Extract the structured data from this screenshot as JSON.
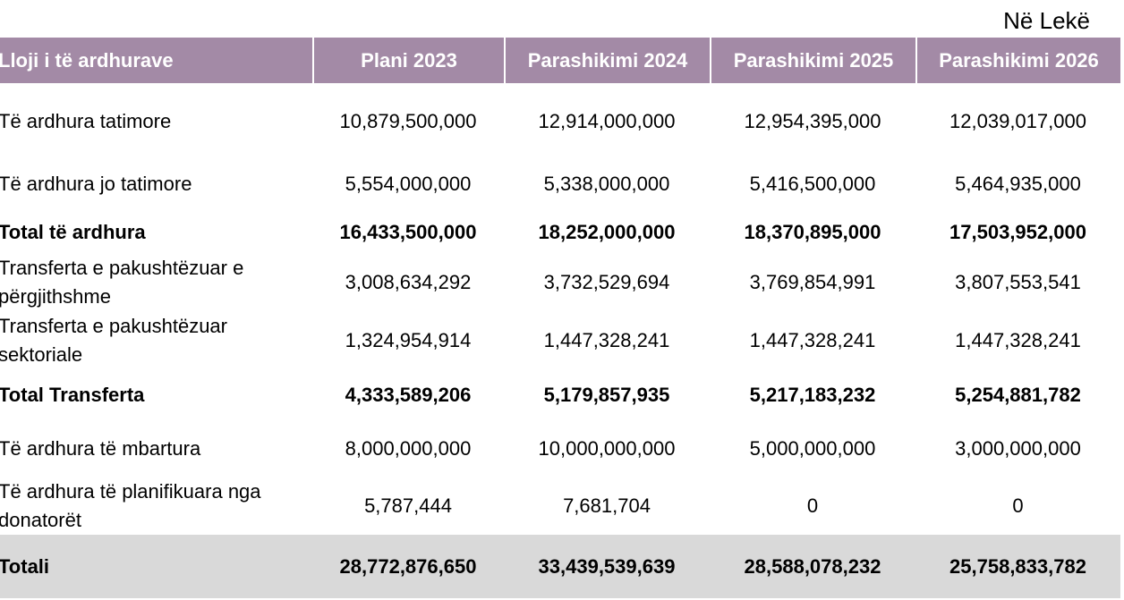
{
  "currency_note": "Në Lekë",
  "table": {
    "headers": [
      "Lloji i të ardhurave",
      "Plani 2023",
      "Parashikimi 2024",
      "Parashikimi 2025",
      "Parashikimi 2026"
    ],
    "rows": [
      {
        "label": "Të ardhura tatimore",
        "values": [
          "10,879,500,000",
          "12,914,000,000",
          "12,954,395,000",
          "12,039,017,000"
        ]
      },
      {
        "label": "Të ardhura jo tatimore",
        "values": [
          "5,554,000,000",
          "5,338,000,000",
          "5,416,500,000",
          "5,464,935,000"
        ]
      },
      {
        "label": "Total të ardhura",
        "values": [
          "16,433,500,000",
          "18,252,000,000",
          "18,370,895,000",
          "17,503,952,000"
        ]
      },
      {
        "label": "Transferta e pakushtëzuar e përgjithshme",
        "values": [
          "3,008,634,292",
          "3,732,529,694",
          "3,769,854,991",
          "3,807,553,541"
        ]
      },
      {
        "label": "Transferta e pakushtëzuar sektoriale",
        "values": [
          "1,324,954,914",
          "1,447,328,241",
          "1,447,328,241",
          "1,447,328,241"
        ]
      },
      {
        "label": "Total Transferta",
        "values": [
          "4,333,589,206",
          "5,179,857,935",
          "5,217,183,232",
          "5,254,881,782"
        ]
      },
      {
        "label": "Të ardhura të mbartura",
        "values": [
          "8,000,000,000",
          "10,000,000,000",
          "5,000,000,000",
          "3,000,000,000"
        ]
      },
      {
        "label": "Të ardhura të planifikuara nga donatorët",
        "values": [
          "5,787,444",
          "7,681,704",
          "0",
          "0"
        ]
      },
      {
        "label": "Totali",
        "values": [
          "28,772,876,650",
          "33,439,539,639",
          "28,588,078,232",
          "25,758,833,782"
        ]
      }
    ]
  },
  "colors": {
    "header_bg": "#a38aa6",
    "header_text": "#ffffff",
    "total_row_bg": "#d9d9d9"
  }
}
